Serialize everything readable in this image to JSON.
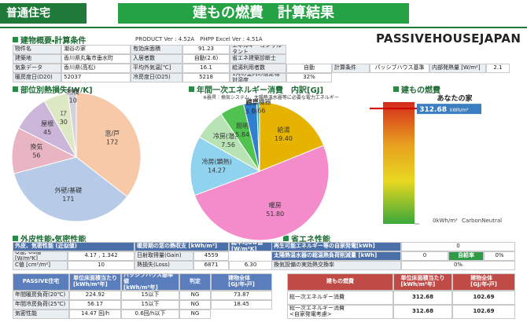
{
  "header": {
    "kind": "普通住宅",
    "title": "建もの燃費　計算結果",
    "brand": "PASSIVEHOUSEJAPAN"
  },
  "overview": {
    "title": "建物概要・計算条件",
    "version": "PRODUCT Ver : 4.52A　PHPP Excel Ver : 4.51A",
    "rows": [
      [
        "物件名",
        "潮谷の家",
        "有効床面積",
        "91.23",
        "エネルギーコンサルタント"
      ],
      [
        "建築地",
        "香川県丸亀市垂水町",
        "入居者数",
        "自動(2.6)",
        "省エネ建築診断士"
      ],
      [
        "気象データ",
        "香川県(高松)",
        "平均外気温[℃]",
        "16.1",
        "給湯利用者数",
        "自動",
        "計算条件",
        "パッシブハウス基準",
        "内部発熱量 [W/m²]",
        "2.1"
      ],
      [
        "暖房度日(D20)",
        "52037",
        "冷房度日(D25)",
        "5218",
        "1月の室内の推定相対湿度",
        "32%"
      ]
    ]
  },
  "chart_data": [
    {
      "type": "pie",
      "title": "部位別熱損失[W/K]",
      "categories": [
        "窓/戸",
        "外壁/基礎",
        "換気",
        "屋根",
        "ｴｱ",
        "熱橋"
      ],
      "values": [
        172,
        171,
        56,
        45,
        30,
        10
      ],
      "colors": [
        "#f7c9a9",
        "#b7cbe8",
        "#e9b5c2",
        "#cbb6da",
        "#dde8c4",
        "#d2d2dc"
      ]
    },
    {
      "type": "pie",
      "title": "年間一次エネルギー消費　内訳[GJ]",
      "subtitle": "※器具：換気システム、太陽熱温水器等に必要な電力エネルギー",
      "categories": [
        "給湯",
        "暖房",
        "冷房(顕熱)",
        "冷房(潜熱)",
        "照明",
        "器具",
        "調理機器"
      ],
      "values": [
        19.4,
        51.8,
        14.27,
        7.56,
        5.84,
        3.16,
        0.66
      ],
      "value_labels": [
        "19.40",
        "51.80",
        "14.27",
        "7.56",
        "5.84",
        "3.16",
        "0.66"
      ],
      "colors": [
        "#e6b400",
        "#f48ccc",
        "#8fd3ee",
        "#b8e3b4",
        "#4fc24f",
        "#2f7fd0",
        "#36b3b3"
      ]
    },
    {
      "type": "gauge",
      "title": "建もの燃費",
      "marker_label": "あなたの家",
      "value": 312.68,
      "unit": "kWh/m²",
      "ylim": [
        0,
        330
      ],
      "yticks": [
        {
          "value": 0,
          "label": "0kWh/m²"
        }
      ],
      "note": "CarbonNeutral",
      "color": "#d00000"
    }
  ],
  "envelope": {
    "title": "外皮性能・気密性能",
    "rows": [
      [
        "外皮、気密性能 (近似値)",
        "暖房期の窓の熱収支 [kWh/m²]",
        "総平均Uw値 [W/m²K]"
      ],
      [
        "Q値, Ua値 [W/m²K]",
        "4.17 , 1.342",
        "日射取得量(Gain)",
        "4559"
      ],
      [
        "C値 [cm²/m²]",
        "10",
        "熱損失(Loss)",
        "6871",
        "6.30"
      ]
    ]
  },
  "energy_saving": {
    "title": "省エネ性能",
    "rows": [
      [
        "再生可能エネルギー等の自家発電[kWh]",
        "0"
      ],
      [
        "太陽熱温水器の総温熱負荷削減量 [kWh]",
        "0",
        "自給率",
        "0%"
      ],
      [
        "換気設備の実効熱交換率",
        "0%"
      ]
    ]
  },
  "passive": {
    "rows": [
      [
        "PASSIVE住宅",
        "単位床面積当たり\n[kWh/m²年]",
        "パッシブハウス基準値\n[kWh/m²年]",
        "判定",
        "建物全体\n[GJ/年・戸]"
      ],
      [
        "年間暖房負荷(20℃)",
        "224.92",
        "15以下",
        "NG",
        "73.87"
      ],
      [
        "年間冷房負荷(25℃)",
        "56.17",
        "15以下",
        "NG",
        "18.45"
      ],
      [
        "気密性能",
        "14.47 回/h",
        "0.6回/h以下",
        "NG"
      ]
    ]
  },
  "fuel": {
    "rows": [
      [
        "建もの燃費",
        "単位床面積当たり\n[kWh/m²年]",
        "建物全体\n[GJ/年・戸]"
      ],
      [
        "総一次エネルギー消費",
        "312.68",
        "102.69"
      ],
      [
        "総一次エネルギー消費\n<自家発電考慮>",
        "312.68",
        "102.69"
      ]
    ]
  }
}
